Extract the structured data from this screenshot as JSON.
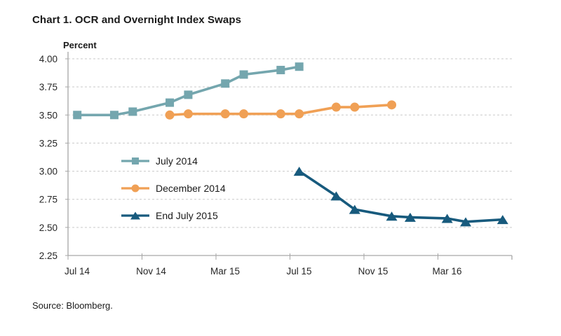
{
  "chart_data": {
    "type": "line",
    "title": "Chart 1. OCR and Overnight Index Swaps",
    "ylabel": "Percent",
    "source": "Source: Bloomberg.",
    "ylim": [
      2.25,
      4.0
    ],
    "y_step": 0.25,
    "y_tick_format": "2dp",
    "x_ticks": [
      "Jul 14",
      "Nov 14",
      "Mar 15",
      "Jul 15",
      "Nov 15",
      "Mar 16"
    ],
    "x_axis_start": "Jul 14",
    "x_axis_span_months": 24,
    "grid": "horizontal-dashed",
    "legend_position": "inside-left-middle",
    "colors": {
      "grid": "#c9c9c9",
      "axis": "#a6a6a6",
      "text": "#262626"
    },
    "series": [
      {
        "name": "July 2014",
        "marker": "square",
        "color": "#74a6ae",
        "points": [
          {
            "x": "Jul 14",
            "y": 3.5
          },
          {
            "x": "Sep 14",
            "y": 3.5
          },
          {
            "x": "Oct 14",
            "y": 3.53
          },
          {
            "x": "Dec 14",
            "y": 3.61
          },
          {
            "x": "Jan 15",
            "y": 3.68
          },
          {
            "x": "Mar 15",
            "y": 3.78
          },
          {
            "x": "Apr 15",
            "y": 3.86
          },
          {
            "x": "Jun 15",
            "y": 3.9
          },
          {
            "x": "Jul 15",
            "y": 3.93
          }
        ]
      },
      {
        "name": "December 2014",
        "marker": "circle",
        "color": "#f0a055",
        "points": [
          {
            "x": "Dec 14",
            "y": 3.5
          },
          {
            "x": "Jan 15",
            "y": 3.51
          },
          {
            "x": "Mar 15",
            "y": 3.51
          },
          {
            "x": "Apr 15",
            "y": 3.51
          },
          {
            "x": "Jun 15",
            "y": 3.51
          },
          {
            "x": "Jul 15",
            "y": 3.51
          },
          {
            "x": "Sep 15",
            "y": 3.57
          },
          {
            "x": "Oct 15",
            "y": 3.57
          },
          {
            "x": "Dec 15",
            "y": 3.59
          }
        ]
      },
      {
        "name": "End July 2015",
        "marker": "triangle",
        "color": "#175a7d",
        "points": [
          {
            "x": "Jul 15",
            "y": 3.0
          },
          {
            "x": "Sep 15",
            "y": 2.78
          },
          {
            "x": "Oct 15",
            "y": 2.66
          },
          {
            "x": "Dec 15",
            "y": 2.6
          },
          {
            "x": "Jan 16",
            "y": 2.59
          },
          {
            "x": "Mar 16",
            "y": 2.58
          },
          {
            "x": "Apr 16",
            "y": 2.55
          },
          {
            "x": "Jun 16",
            "y": 2.57
          }
        ]
      }
    ]
  }
}
